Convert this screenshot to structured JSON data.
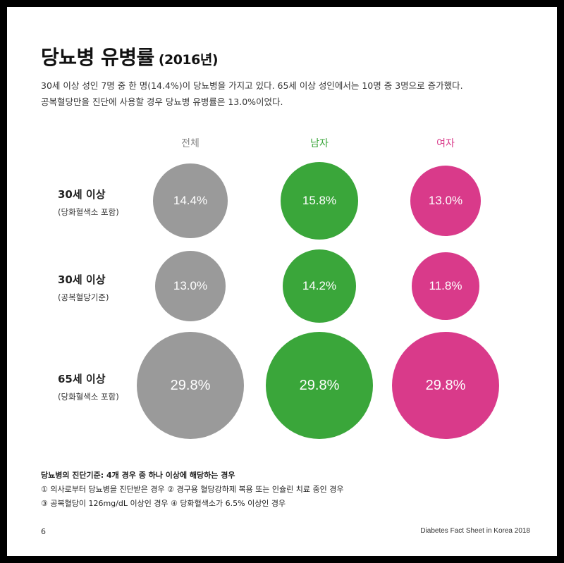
{
  "title": "당뇨병 유병률",
  "title_year": "(2016년)",
  "description": [
    "30세 이상 성인 7명 중 한 명(14.4%)이 당뇨병을 가지고 있다. 65세 이상 성인에서는 10명 중 3명으로 증가했다.",
    "공복혈당만을 진단에 사용할 경우 당뇨병 유병률은 13.0%이었다."
  ],
  "colors": {
    "total": "#9a9a9a",
    "male": "#3aa63a",
    "female": "#d93a8a",
    "header_total": "#888888"
  },
  "chart_data": {
    "type": "bubble",
    "columns": [
      "전체",
      "남자",
      "여자"
    ],
    "rows": [
      {
        "label": "30세 이상",
        "sublabel": "(당화혈색소 포함)",
        "values": [
          14.4,
          15.8,
          13.0
        ],
        "labels": [
          "14.4%",
          "15.8%",
          "13.0%"
        ]
      },
      {
        "label": "30세 이상",
        "sublabel": "(공복혈당기준)",
        "values": [
          13.0,
          14.2,
          11.8
        ],
        "labels": [
          "13.0%",
          "14.2%",
          "11.8%"
        ]
      },
      {
        "label": "65세 이상",
        "sublabel": "(당화혈색소 포함)",
        "values": [
          29.8,
          29.8,
          29.8
        ],
        "labels": [
          "29.8%",
          "29.8%",
          "29.8%"
        ]
      }
    ]
  },
  "notes": {
    "title": "당뇨병의 진단기준: 4개 경우 중 하나 이상에 해당하는 경우",
    "lines": [
      "① 의사로부터 당뇨병을 진단받은 경우 ② 경구용 혈당강하제 복용 또는 인슐린 치료 중인 경우",
      "③ 공복혈당이 126mg/dL 이상인 경우 ④ 당화혈색소가 6.5% 이상인 경우"
    ]
  },
  "page_number": "6",
  "footer": "Diabetes Fact Sheet in Korea 2018"
}
